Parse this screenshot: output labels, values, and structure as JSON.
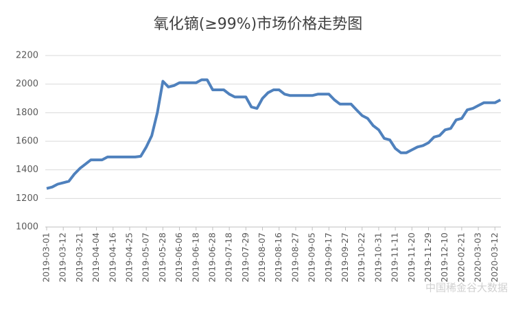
{
  "chart_data": {
    "type": "line",
    "title": "氧化镝(≥99%)市场价格走势图",
    "categories": [
      "2019-03-01",
      null,
      null,
      "2019-03-12",
      null,
      null,
      "2019-03-21",
      null,
      null,
      "2019-04-04",
      null,
      null,
      "2019-04-16",
      null,
      null,
      "2019-04-25",
      null,
      null,
      "2019-05-07",
      null,
      null,
      "2019-05-28",
      null,
      null,
      "2019-06-06",
      null,
      null,
      "2019-06-18",
      null,
      null,
      "2019-06-28",
      null,
      null,
      "2019-07-18",
      null,
      null,
      "2019-07-29",
      null,
      null,
      "2019-08-07",
      null,
      null,
      "2019-08-16",
      null,
      null,
      "2019-08-27",
      null,
      null,
      "2019-09-05",
      null,
      null,
      "2019-09-17",
      null,
      null,
      "2019-09-27",
      null,
      null,
      "2019-10-22",
      null,
      null,
      "2019-10-31",
      null,
      null,
      "2019-11-11",
      null,
      null,
      "2019-11-20",
      null,
      null,
      "2019-11-29",
      null,
      null,
      "2019-12-10",
      null,
      null,
      "2020-02-21",
      null,
      null,
      "2020-03-03",
      null,
      null,
      "2020-03-12",
      null
    ],
    "series": [
      {
        "name": "氧化镝",
        "color": "#4f81bd",
        "values": [
          1270,
          1280,
          1300,
          1310,
          1320,
          1370,
          1410,
          1440,
          1470,
          1470,
          1470,
          1490,
          1490,
          1490,
          1490,
          1490,
          1490,
          1495,
          1560,
          1640,
          1800,
          2020,
          1980,
          1990,
          2010,
          2010,
          2010,
          2010,
          2030,
          2030,
          1960,
          1960,
          1960,
          1930,
          1910,
          1910,
          1910,
          1840,
          1830,
          1900,
          1940,
          1960,
          1960,
          1930,
          1920,
          1920,
          1920,
          1920,
          1920,
          1930,
          1930,
          1930,
          1890,
          1860,
          1860,
          1860,
          1820,
          1780,
          1760,
          1710,
          1680,
          1620,
          1610,
          1550,
          1520,
          1520,
          1540,
          1560,
          1570,
          1590,
          1630,
          1640,
          1680,
          1690,
          1750,
          1760,
          1820,
          1830,
          1850,
          1870,
          1870,
          1870,
          1890
        ]
      }
    ],
    "ylim": [
      1000,
      2200
    ],
    "yticks": [
      1000,
      1200,
      1400,
      1600,
      1800,
      2000,
      2200
    ],
    "grid": true,
    "watermark": "中国稀金谷大数据"
  }
}
